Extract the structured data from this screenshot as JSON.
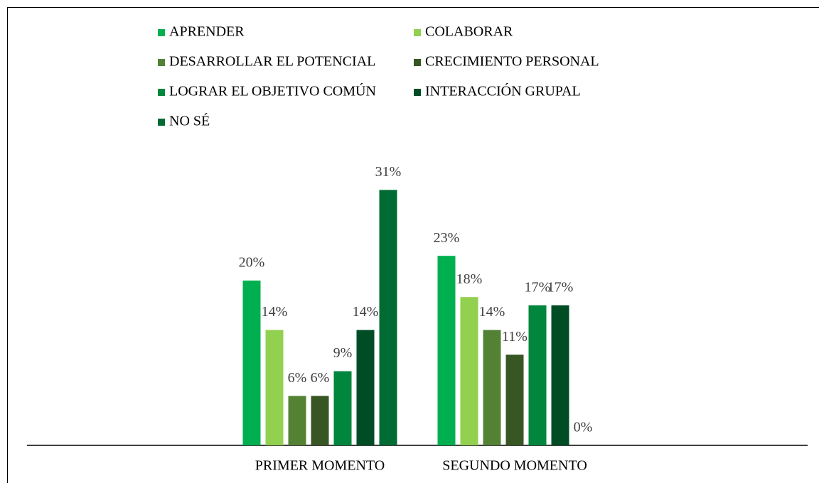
{
  "chart_data": {
    "type": "bar",
    "categories": [
      "PRIMER MOMENTO",
      "SEGUNDO MOMENTO"
    ],
    "series": [
      {
        "name": "APRENDER",
        "color": "#00b050",
        "values": [
          20,
          23
        ],
        "value_labels": [
          "20%",
          "23%"
        ]
      },
      {
        "name": "COLABORAR",
        "color": "#92d050",
        "values": [
          14,
          18
        ],
        "value_labels": [
          "14%",
          "18%"
        ]
      },
      {
        "name": "DESARROLLAR EL POTENCIAL",
        "color": "#548235",
        "values": [
          6,
          14
        ],
        "value_labels": [
          "6%",
          "14%"
        ]
      },
      {
        "name": "CRECIMIENTO PERSONAL",
        "color": "#375623",
        "values": [
          6,
          11
        ],
        "value_labels": [
          "6%",
          "11%"
        ]
      },
      {
        "name": "LOGRAR EL OBJETIVO COMÚN",
        "color": "#00863d",
        "values": [
          9,
          17
        ],
        "value_labels": [
          "9%",
          "17%"
        ]
      },
      {
        "name": "INTERACCIÓN GRUPAL",
        "color": "#004d25",
        "values": [
          14,
          17
        ],
        "value_labels": [
          "14%",
          "17%"
        ]
      },
      {
        "name": "NO SÉ",
        "color": "#006b33",
        "values": [
          31,
          0
        ],
        "value_labels": [
          "31%",
          "0%"
        ]
      }
    ],
    "ylim": [
      0,
      35
    ],
    "legend": "top"
  }
}
